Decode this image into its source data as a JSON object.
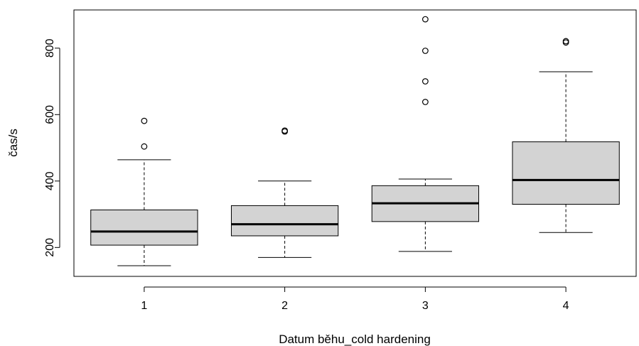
{
  "chart_data": {
    "type": "boxplot",
    "xlabel": "Datum běhu_cold hardening",
    "ylabel": "čas/s",
    "categories": [
      "1",
      "2",
      "3",
      "4"
    ],
    "ylim": [
      113,
      915
    ],
    "yticks": [
      200,
      400,
      600,
      800
    ],
    "boxes": [
      {
        "category": "1",
        "min": 145,
        "q1": 207,
        "median": 248,
        "q3": 313,
        "max": 464,
        "outliers": [
          504,
          581
        ]
      },
      {
        "category": "2",
        "min": 170,
        "q1": 235,
        "median": 270,
        "q3": 326,
        "max": 400,
        "outliers": [
          549,
          552
        ]
      },
      {
        "category": "3",
        "min": 188,
        "q1": 278,
        "median": 333,
        "q3": 386,
        "max": 406,
        "outliers": [
          638,
          700,
          792,
          887
        ]
      },
      {
        "category": "4",
        "min": 245,
        "q1": 330,
        "median": 403,
        "q3": 518,
        "max": 729,
        "outliers": [
          817,
          821
        ]
      }
    ],
    "box_fill": "#d3d3d3",
    "grid": false
  }
}
